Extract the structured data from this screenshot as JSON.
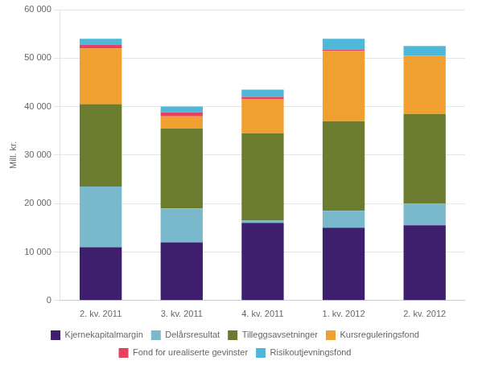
{
  "chart_data": {
    "type": "bar",
    "stacked": true,
    "categories": [
      "2. kv. 2011",
      "3. kv. 2011",
      "4. kv. 2011",
      "1. kv. 2012",
      "2. kv. 2012"
    ],
    "series": [
      {
        "name": "Kjernekapitalmargin",
        "color": "#3d1f6e",
        "values": [
          11000,
          12000,
          16000,
          15000,
          15500
        ]
      },
      {
        "name": "Delårsresultat",
        "color": "#7ab8cc",
        "values": [
          12500,
          7000,
          500,
          3500,
          4500
        ]
      },
      {
        "name": "Tilleggsavsetninger",
        "color": "#6b7c2e",
        "values": [
          17000,
          16500,
          18000,
          18500,
          18500
        ]
      },
      {
        "name": "Kursreguleringsfond",
        "color": "#f0a030",
        "values": [
          11500,
          2500,
          7000,
          14500,
          12000
        ]
      },
      {
        "name": "Fond for urealiserte gevinster",
        "color": "#e84060",
        "values": [
          700,
          800,
          500,
          300,
          0
        ]
      },
      {
        "name": "Risikoutjevningsfond",
        "color": "#4db8d8",
        "values": [
          1300,
          1200,
          1500,
          2200,
          2000
        ]
      }
    ],
    "ylabel": "Mill. kr.",
    "ylim": [
      0,
      60000
    ],
    "yticks": [
      0,
      {
        "value": 10000,
        "label": "10 000"
      },
      {
        "value": 20000,
        "label": "20 000"
      },
      {
        "value": 30000,
        "label": "30 000"
      },
      {
        "value": 40000,
        "label": "40 000"
      },
      {
        "value": 50000,
        "label": "50 000"
      },
      {
        "value": 60000,
        "label": "60 000"
      }
    ],
    "grid": true,
    "legend": "bottom"
  }
}
